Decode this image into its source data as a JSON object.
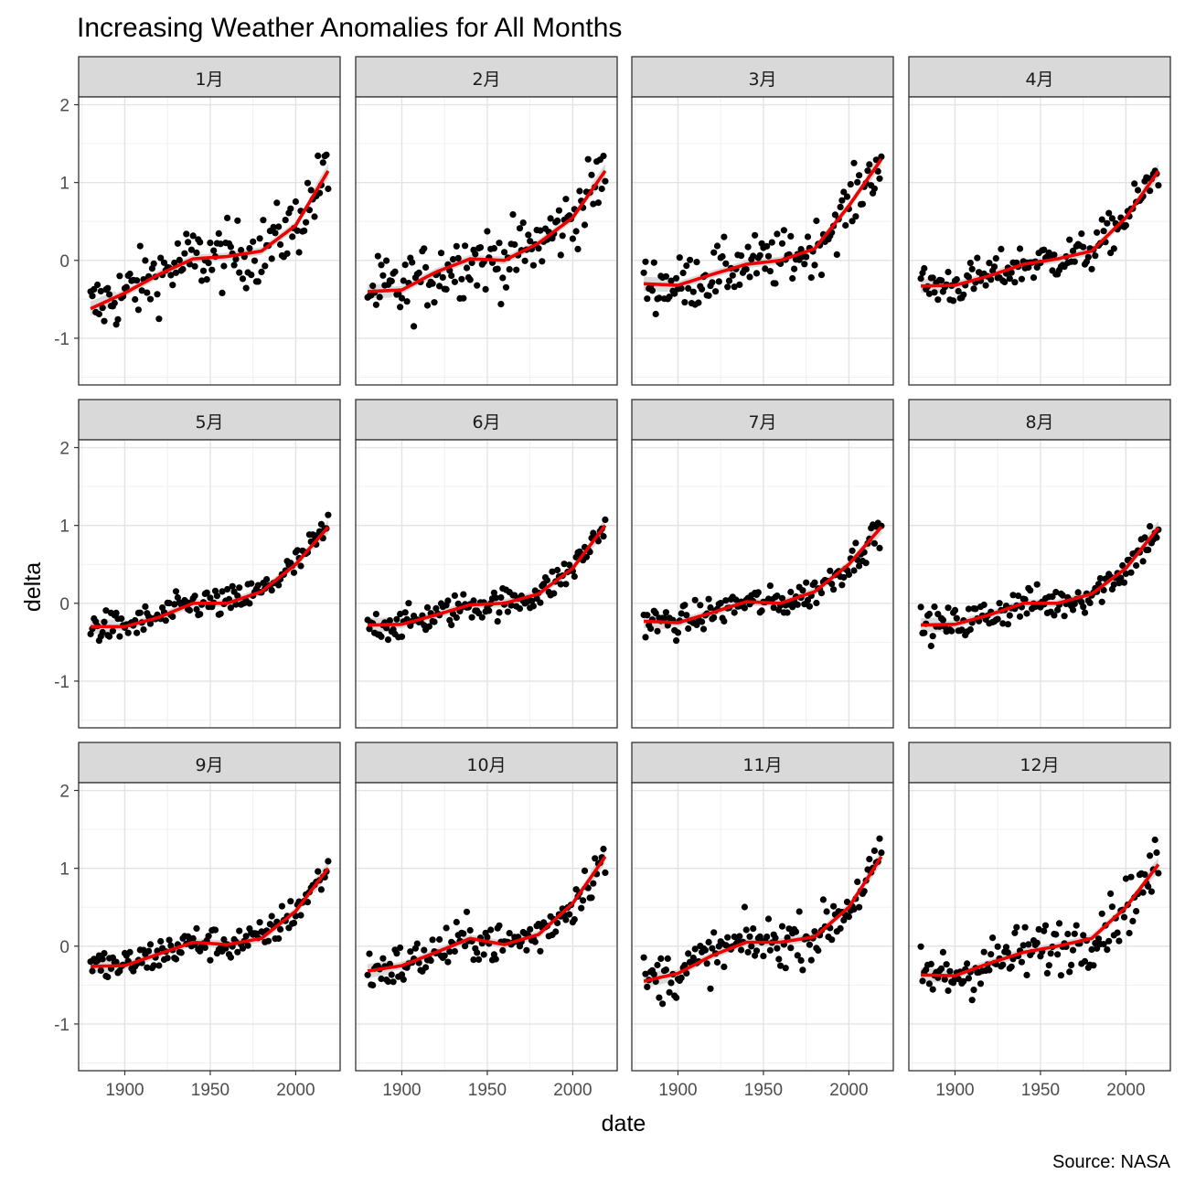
{
  "chart_data": {
    "type": "scatter",
    "title": "Increasing Weather Anomalies for All Months",
    "xlabel": "date",
    "ylabel": "delta",
    "caption": "Source: NASA",
    "xlim": [
      1873,
      2026
    ],
    "ylim": [
      -1.6,
      2.1
    ],
    "x_ticks": [
      1900,
      1950,
      2000
    ],
    "y_ticks": [
      -1,
      0,
      1,
      2
    ],
    "grid": true,
    "point_color": "#000000",
    "smooth_color": "#ee0000",
    "ribbon_color": "#cccccc",
    "panel_strip_color": "#d9d9d9",
    "smooth_x": [
      1880,
      1900,
      1920,
      1940,
      1960,
      1980,
      2000,
      2019
    ],
    "panels": [
      {
        "label": "1月",
        "smooth_y": [
          -0.62,
          -0.42,
          -0.18,
          0.02,
          0.05,
          0.12,
          0.45,
          1.15
        ],
        "scatter_sd": 0.22
      },
      {
        "label": "2月",
        "smooth_y": [
          -0.4,
          -0.38,
          -0.15,
          0.02,
          0.0,
          0.22,
          0.55,
          1.15
        ],
        "scatter_sd": 0.22
      },
      {
        "label": "3月",
        "smooth_y": [
          -0.3,
          -0.32,
          -0.18,
          -0.05,
          0.0,
          0.15,
          0.7,
          1.3
        ],
        "scatter_sd": 0.18
      },
      {
        "label": "4月",
        "smooth_y": [
          -0.33,
          -0.32,
          -0.2,
          -0.05,
          0.02,
          0.12,
          0.55,
          1.15
        ],
        "scatter_sd": 0.13
      },
      {
        "label": "5月",
        "smooth_y": [
          -0.3,
          -0.3,
          -0.18,
          0.0,
          0.0,
          0.15,
          0.5,
          0.98
        ],
        "scatter_sd": 0.1
      },
      {
        "label": "6月",
        "smooth_y": [
          -0.28,
          -0.27,
          -0.15,
          -0.02,
          0.0,
          0.12,
          0.45,
          1.0
        ],
        "scatter_sd": 0.1
      },
      {
        "label": "7月",
        "smooth_y": [
          -0.23,
          -0.25,
          -0.12,
          0.02,
          0.0,
          0.15,
          0.5,
          0.98
        ],
        "scatter_sd": 0.1
      },
      {
        "label": "8月",
        "smooth_y": [
          -0.28,
          -0.27,
          -0.15,
          0.0,
          0.0,
          0.12,
          0.45,
          0.97
        ],
        "scatter_sd": 0.11
      },
      {
        "label": "9月",
        "smooth_y": [
          -0.26,
          -0.25,
          -0.1,
          0.05,
          0.02,
          0.1,
          0.45,
          1.0
        ],
        "scatter_sd": 0.11
      },
      {
        "label": "10月",
        "smooth_y": [
          -0.32,
          -0.25,
          -0.08,
          0.1,
          0.02,
          0.15,
          0.55,
          1.15
        ],
        "scatter_sd": 0.14
      },
      {
        "label": "11月",
        "smooth_y": [
          -0.45,
          -0.35,
          -0.12,
          0.05,
          0.05,
          0.12,
          0.5,
          1.15
        ],
        "scatter_sd": 0.16
      },
      {
        "label": "12月",
        "smooth_y": [
          -0.37,
          -0.38,
          -0.22,
          -0.08,
          0.0,
          0.1,
          0.5,
          1.05
        ],
        "scatter_sd": 0.18
      }
    ]
  }
}
